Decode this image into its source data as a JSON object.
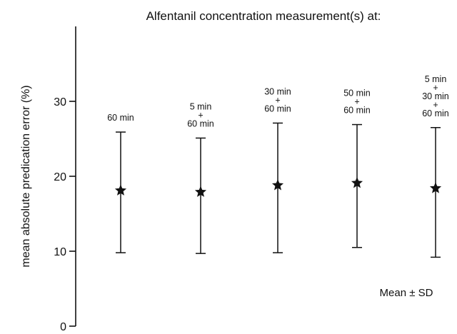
{
  "chart_data": {
    "type": "errorbar",
    "title": "Alfentanil concentration measurement(s) at:",
    "xlabel": "",
    "ylabel": "mean absolute predication error (%)",
    "ylim": [
      0,
      40
    ],
    "yticks": [
      0,
      10,
      20,
      30
    ],
    "grid": false,
    "legend_text": "Mean ± SD",
    "marker": "star",
    "colors": {
      "ink": "#111111",
      "background": "#ffffff"
    },
    "categories": [
      [
        "60 min"
      ],
      [
        "5 min",
        "+",
        "60 min"
      ],
      [
        "30 min",
        "+",
        "60 min"
      ],
      [
        "50 min",
        "+",
        "60 min"
      ],
      [
        "5 min",
        "+",
        "30 min",
        "+",
        "60 min"
      ]
    ],
    "mean": [
      18.1,
      17.9,
      18.8,
      19.1,
      18.4
    ],
    "upper": [
      25.9,
      25.1,
      27.1,
      26.9,
      26.5
    ],
    "lower": [
      9.8,
      9.7,
      9.8,
      10.5,
      9.2
    ]
  }
}
